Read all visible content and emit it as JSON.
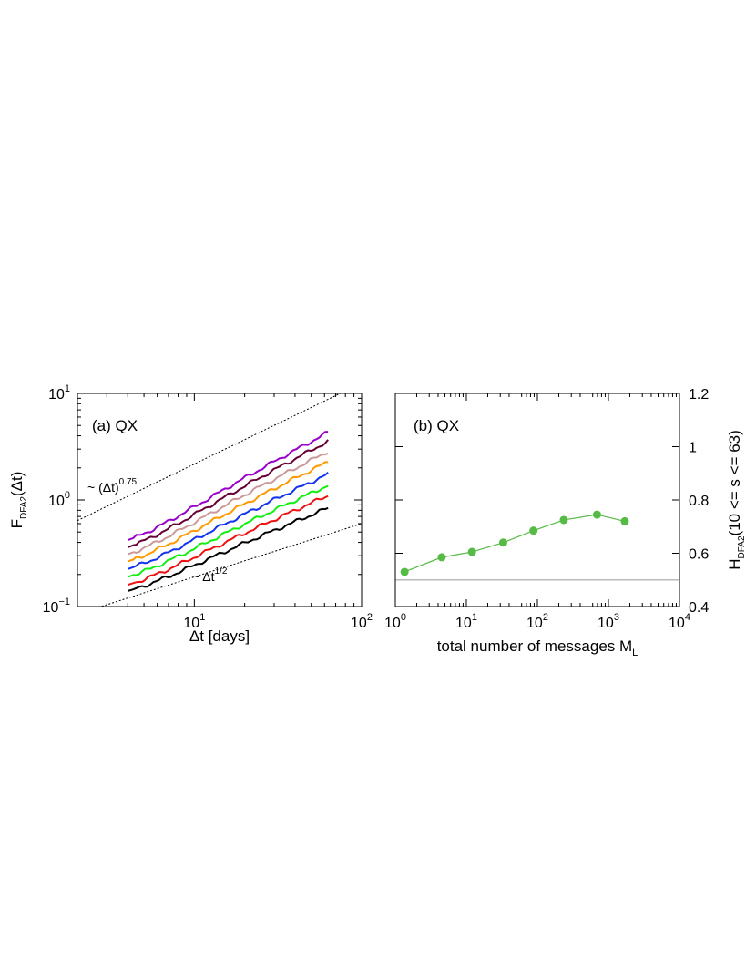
{
  "chart_data": [
    {
      "type": "line",
      "panel_label": "(a) QX",
      "xlabel": "Δt  [days]",
      "ylabel_main": "F",
      "ylabel_sub": "DFA2",
      "ylabel_tail": "(Δt)",
      "xscale": "log",
      "yscale": "log",
      "xlim": [
        2,
        100
      ],
      "ylim": [
        0.1,
        10
      ],
      "xticks": [
        {
          "value": 10,
          "base": "10",
          "exp": "1"
        },
        {
          "value": 100,
          "base": "10",
          "exp": "2"
        }
      ],
      "yticks": [
        {
          "value": 0.1,
          "base": "10",
          "exp": "−1"
        },
        {
          "value": 1,
          "base": "10",
          "exp": "0"
        },
        {
          "value": 10,
          "base": "10",
          "exp": "1"
        }
      ],
      "series_colors": [
        "#000000",
        "#ee1111",
        "#11ee11",
        "#1133ee",
        "#ff9900",
        "#cc9999",
        "#660033",
        "#9900cc"
      ],
      "series_start": [
        0.14,
        0.16,
        0.19,
        0.225,
        0.265,
        0.31,
        0.36,
        0.42
      ],
      "series_end": [
        0.84,
        1.1,
        1.37,
        1.75,
        2.28,
        2.85,
        3.55,
        4.3
      ],
      "x_range": [
        4,
        63
      ],
      "reference_lines": [
        {
          "label": "~ (Δt)",
          "label_exp": "0.75",
          "style": "dotted",
          "x": [
            2,
            100
          ],
          "y": [
            0.64,
            12.5
          ]
        },
        {
          "label": "~ Δt",
          "label_exp": "1/2",
          "style": "dotted",
          "x": [
            2,
            100
          ],
          "y": [
            0.085,
            0.6
          ]
        }
      ]
    },
    {
      "type": "line",
      "panel_label": "(b) QX",
      "xlabel": "total number of messages M",
      "xlabel_sub": "L",
      "ylabel_main": "H",
      "ylabel_sub": "DFA2",
      "ylabel_tail": "(10 <= s <= 63)",
      "xscale": "log",
      "xlim": [
        1,
        10000
      ],
      "ylim": [
        0.4,
        1.2
      ],
      "y_axis_position": "right",
      "xticks": [
        {
          "value": 1,
          "base": "10",
          "exp": "0"
        },
        {
          "value": 10,
          "base": "10",
          "exp": "1"
        },
        {
          "value": 100,
          "base": "10",
          "exp": "2"
        },
        {
          "value": 1000,
          "base": "10",
          "exp": "3"
        },
        {
          "value": 10000,
          "base": "10",
          "exp": "4"
        }
      ],
      "yticks": [
        "0.4",
        "0.6",
        "0.8",
        "1",
        "1.2"
      ],
      "ytick_values": [
        0.4,
        0.6,
        0.8,
        1.0,
        1.2
      ],
      "series": [
        {
          "color": "#55bb44",
          "x": [
            1.35,
            4.5,
            12,
            33,
            88,
            235,
            690,
            1700
          ],
          "y": [
            0.53,
            0.585,
            0.605,
            0.64,
            0.685,
            0.725,
            0.745,
            0.72
          ]
        }
      ],
      "reference_line": {
        "y": 0.5,
        "color": "#bbbbbb"
      }
    }
  ]
}
